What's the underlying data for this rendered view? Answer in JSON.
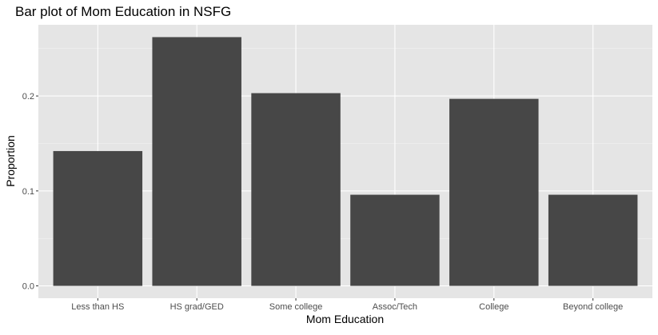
{
  "colors": {
    "panel_background": "#e5e5e5",
    "grid_major": "#ffffff",
    "grid_minor": "#f2f2f2",
    "bar_fill": "#474747",
    "tick_mark": "#333333",
    "tick_text": "#4d4d4d"
  },
  "chart_data": {
    "type": "bar",
    "title": "Bar plot of Mom Education in NSFG",
    "xlabel": "Mom Education",
    "ylabel": "Proportion",
    "categories": [
      "Less than HS",
      "HS grad/GED",
      "Some college",
      "Assoc/Tech",
      "College",
      "Beyond college"
    ],
    "values": [
      0.142,
      0.262,
      0.203,
      0.096,
      0.197,
      0.096
    ],
    "ylim": [
      -0.013,
      0.275
    ],
    "yticks": [
      0.0,
      0.1,
      0.2
    ],
    "ytick_labels": [
      "0.0",
      "0.1",
      "0.2"
    ],
    "grid": true,
    "legend": "none"
  }
}
